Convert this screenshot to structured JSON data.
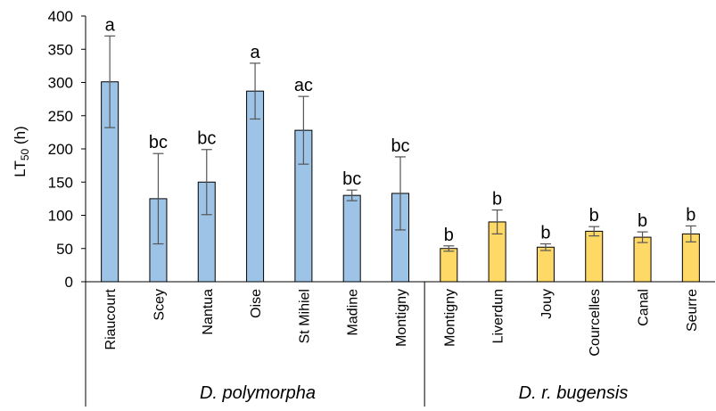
{
  "chart_data": {
    "type": "bar",
    "ylabel_main": "LT",
    "ylabel_sub": "50",
    "ylabel_unit": " (h)",
    "ylim": [
      0,
      400
    ],
    "yticks": [
      "0",
      "50",
      "100",
      "150",
      "200",
      "250",
      "300",
      "350",
      "400"
    ],
    "grid": false,
    "groups": [
      {
        "name": "D. polymorpha",
        "color": "#9dc3e6",
        "categories": [
          "Riaucourt",
          "Scey",
          "Nantua",
          "Oise",
          "St Mihiel",
          "Madine",
          "Montigny"
        ],
        "values": [
          301,
          125,
          150,
          287,
          228,
          130,
          133
        ],
        "errors": [
          69,
          68,
          49,
          42,
          51,
          8,
          55
        ],
        "letters": [
          "a",
          "bc",
          "bc",
          "a",
          "ac",
          "bc",
          "bc"
        ]
      },
      {
        "name": "D. r. bugensis",
        "color": "#ffd966",
        "categories": [
          "Montigny",
          "Liverdun",
          "Jouy",
          "Courcelles",
          "Canal",
          "Seurre"
        ],
        "values": [
          50,
          90,
          52,
          76,
          67,
          72
        ],
        "errors": [
          4,
          18,
          5,
          7,
          8,
          12
        ],
        "letters": [
          "b",
          "b",
          "b",
          "b",
          "b",
          "b"
        ]
      }
    ]
  }
}
